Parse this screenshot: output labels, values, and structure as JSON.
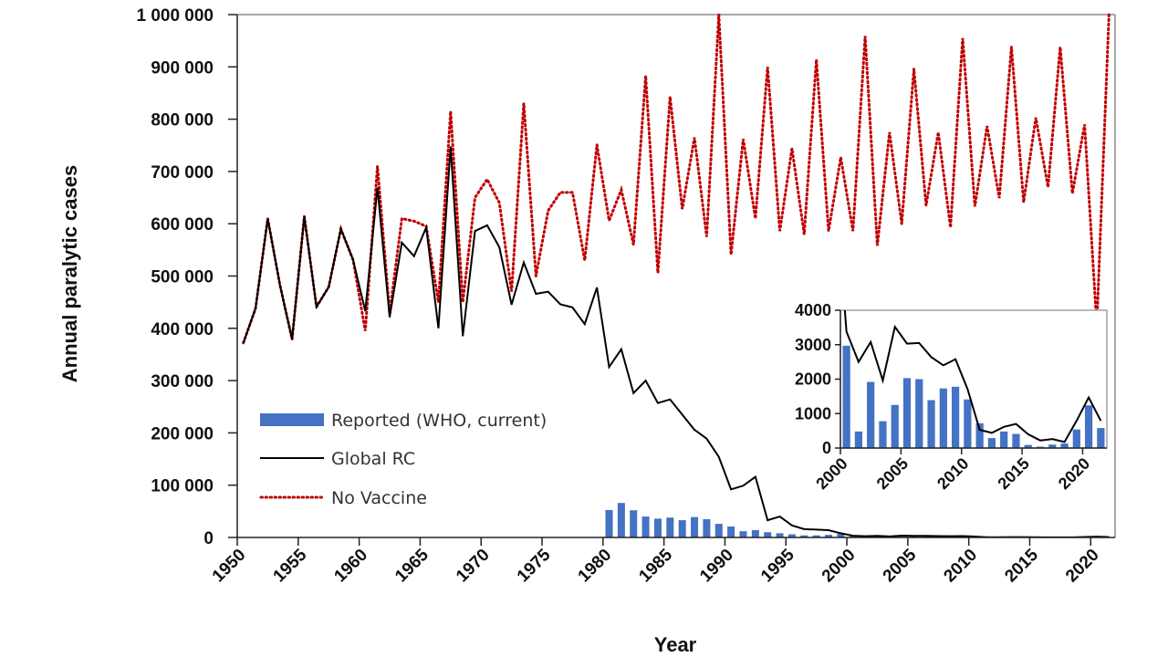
{
  "chart_data": {
    "type": "line",
    "xlabel": "Year",
    "ylabel": "Annual paralytic cases",
    "xlim": [
      1950,
      2022
    ],
    "ylim": [
      0,
      1000000
    ],
    "y_ticks": [
      "0",
      "100 000",
      "200 000",
      "300 000",
      "400 000",
      "500 000",
      "600 000",
      "700 000",
      "800 000",
      "900 000",
      "1 000 000"
    ],
    "x_ticks": [
      "1950",
      "1955",
      "1960",
      "1965",
      "1970",
      "1975",
      "1980",
      "1985",
      "1990",
      "1995",
      "2000",
      "2005",
      "2010",
      "2015",
      "2020"
    ],
    "grid": false,
    "legend_placement": "bottom-left",
    "colors": {
      "reported": "#4472C4",
      "global_rc": "#000000",
      "no_vaccine": "#C00000"
    },
    "series": [
      {
        "name": "Reported (WHO, current)",
        "type": "bar",
        "x": [
          1980,
          1981,
          1982,
          1983,
          1984,
          1985,
          1986,
          1987,
          1988,
          1989,
          1990,
          1991,
          1992,
          1993,
          1994,
          1995,
          1996,
          1997,
          1998,
          1999,
          2000,
          2001,
          2002,
          2003,
          2004,
          2005,
          2006,
          2007,
          2008,
          2009,
          2010,
          2011,
          2012,
          2013,
          2014,
          2015,
          2016,
          2017,
          2018,
          2019,
          2020,
          2021
        ],
        "values": [
          52500,
          66000,
          52000,
          40000,
          36000,
          38000,
          33000,
          39000,
          35000,
          26000,
          21000,
          12000,
          14000,
          10000,
          8000,
          6000,
          4000,
          4000,
          5000,
          7000,
          2970,
          480,
          1920,
          780,
          1250,
          2030,
          2000,
          1390,
          1730,
          1780,
          1410,
          720,
          290,
          480,
          410,
          90,
          40,
          100,
          130,
          540,
          1240,
          580
        ]
      },
      {
        "name": "Global RC",
        "type": "line",
        "x": [
          1950,
          1951,
          1952,
          1953,
          1954,
          1955,
          1956,
          1957,
          1958,
          1959,
          1960,
          1961,
          1962,
          1963,
          1964,
          1965,
          1966,
          1967,
          1968,
          1969,
          1970,
          1971,
          1972,
          1973,
          1974,
          1975,
          1976,
          1977,
          1978,
          1979,
          1980,
          1981,
          1982,
          1983,
          1984,
          1985,
          1986,
          1987,
          1988,
          1989,
          1990,
          1991,
          1992,
          1993,
          1994,
          1995,
          1996,
          1997,
          1998,
          1999,
          2000,
          2001,
          2002,
          2003,
          2004,
          2005,
          2006,
          2007,
          2008,
          2009,
          2010,
          2011,
          2012,
          2013,
          2014,
          2015,
          2016,
          2017,
          2018,
          2019,
          2020,
          2021
        ],
        "values": [
          372000,
          438000,
          610000,
          483000,
          379000,
          614000,
          441000,
          479000,
          590000,
          531000,
          433000,
          669000,
          421000,
          564000,
          538000,
          593000,
          400000,
          748000,
          385000,
          586000,
          597000,
          555000,
          445000,
          526000,
          466000,
          470000,
          446000,
          440000,
          408000,
          478000,
          326000,
          360000,
          276000,
          300000,
          257000,
          264000,
          235000,
          206000,
          189000,
          154000,
          92000,
          99000,
          116000,
          33000,
          40000,
          23000,
          16000,
          15000,
          14000,
          8000,
          3380,
          2500,
          3080,
          1960,
          3520,
          3030,
          3050,
          2640,
          2400,
          2580,
          1710,
          530,
          440,
          615,
          700,
          400,
          220,
          260,
          175,
          790,
          1470,
          790
        ]
      },
      {
        "name": "No Vaccine",
        "type": "line",
        "style": "dotted",
        "x": [
          1950,
          1951,
          1952,
          1953,
          1954,
          1955,
          1956,
          1957,
          1958,
          1959,
          1960,
          1961,
          1962,
          1963,
          1964,
          1965,
          1966,
          1967,
          1968,
          1969,
          1970,
          1971,
          1972,
          1973,
          1974,
          1975,
          1976,
          1977,
          1978,
          1979,
          1980,
          1981,
          1982,
          1983,
          1984,
          1985,
          1986,
          1987,
          1988,
          1989,
          1990,
          1991,
          1992,
          1993,
          1994,
          1995,
          1996,
          1997,
          1998,
          1999,
          2000,
          2001,
          2002,
          2003,
          2004,
          2005,
          2006,
          2007,
          2008,
          2009,
          2010,
          2011,
          2012,
          2013,
          2014,
          2015,
          2016,
          2017,
          2018,
          2019,
          2020,
          2021
        ],
        "values": [
          372000,
          438000,
          610000,
          483000,
          379000,
          614000,
          441000,
          479000,
          590000,
          531000,
          395000,
          710000,
          430000,
          610000,
          605000,
          595000,
          450000,
          815000,
          450000,
          650000,
          685000,
          640000,
          470000,
          830000,
          500000,
          625000,
          660000,
          660000,
          530000,
          751000,
          606000,
          665000,
          560000,
          883000,
          506000,
          843000,
          628000,
          765000,
          575000,
          1000000,
          541000,
          762000,
          610000,
          900000,
          586000,
          744000,
          580000,
          914000,
          586000,
          727000,
          586000,
          959000,
          558000,
          775000,
          600000,
          896000,
          635000,
          775000,
          593000,
          955000,
          633000,
          787000,
          649000,
          938000,
          641000,
          803000,
          670000,
          938000,
          658000,
          790000,
          406000,
          1000000
        ]
      }
    ],
    "inset": {
      "xlim": [
        2000,
        2022
      ],
      "ylim": [
        0,
        4000
      ],
      "y_ticks": [
        "0",
        "1000",
        "2000",
        "3000",
        "4000"
      ],
      "x_ticks": [
        "2000",
        "2005",
        "2010",
        "2015",
        "2020"
      ],
      "shows": [
        "Reported (WHO, current)",
        "Global RC"
      ]
    }
  }
}
